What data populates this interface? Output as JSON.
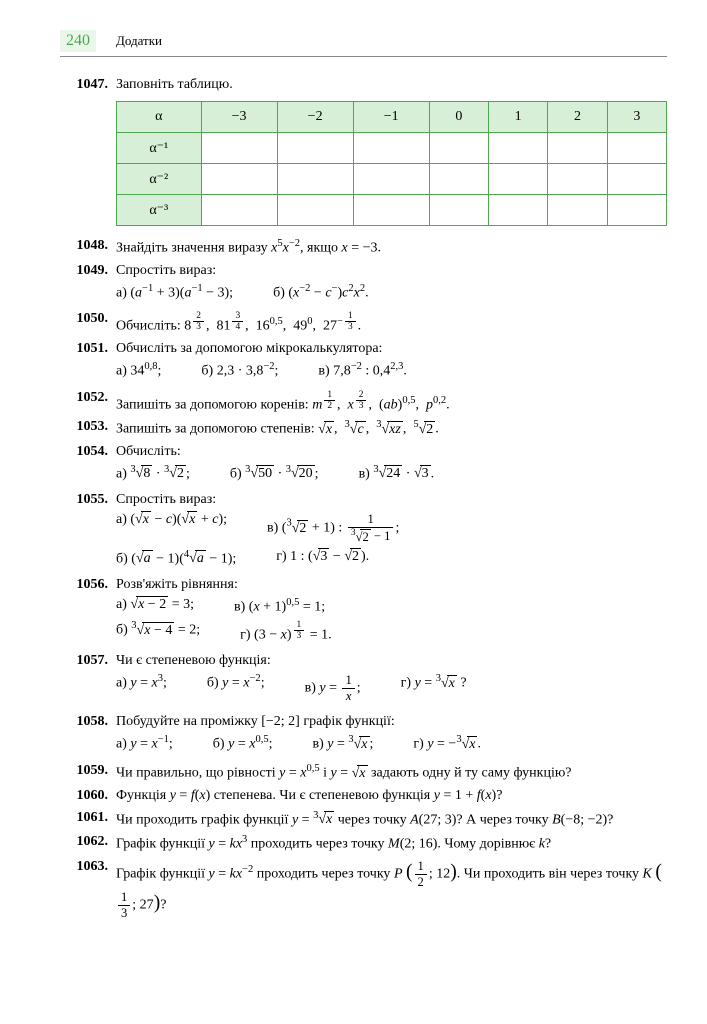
{
  "page_number": "240",
  "header_title": "Додатки",
  "table": {
    "headers": [
      "α",
      "−3",
      "−2",
      "−1",
      "0",
      "1",
      "2",
      "3"
    ],
    "row_labels": [
      "α⁻¹",
      "α⁻²",
      "α⁻³"
    ]
  },
  "problems": {
    "p1047": {
      "num": "1047.",
      "text": "Заповніть таблицю."
    },
    "p1048": {
      "num": "1048.",
      "text": "Знайдіть значення виразу x⁵x⁻², якщо x = −3."
    },
    "p1049": {
      "num": "1049.",
      "text": "Спростіть вираз:",
      "a": "а) (a⁻¹ + 3)(a⁻¹ − 3);",
      "b": "б) (x⁻² − c⁻)c²x²."
    },
    "p1050": {
      "num": "1050.",
      "text": "Обчисліть: 8^{2/3}, 81^{3/4}, 16^{0,5}, 49^0, 27^{−1/3}."
    },
    "p1051": {
      "num": "1051.",
      "text": "Обчисліть за допомогою мікрокалькулятора:",
      "a": "а) 34^{0,8};",
      "b": "б) 2,3 · 3,8^{−2};",
      "v": "в) 7,8^{−2} : 0,4^{2,3}."
    },
    "p1052": {
      "num": "1052.",
      "text": "Запишіть за допомогою коренів: m^{1/2}, x^{2/3}, (ab)^{0,5}, p^{0,2}."
    },
    "p1053": {
      "num": "1053.",
      "text": "Запишіть за допомогою степенів: √x, ³√c, ³√(xz), ⁵√2."
    },
    "p1054": {
      "num": "1054.",
      "text": "Обчисліть:",
      "a": "а) ³√8 · ³√2;",
      "b": "б) ³√50 · ³√20;",
      "v": "в) ³√24 · √3."
    },
    "p1055": {
      "num": "1055.",
      "text": "Спростіть вираз:",
      "a": "а) (√x − c)(√x + c);",
      "v": "в) (³√2 + 1) : 1/(³√2 − 1);",
      "b": "б) (√a − 1)(⁴√a − 1);",
      "g": "г) 1 : (√3 − √2)."
    },
    "p1056": {
      "num": "1056.",
      "text": "Розв'яжіть рівняння:",
      "a": "а) √(x − 2) = 3;",
      "v": "в) (x + 1)^{0,5} = 1;",
      "b": "б) ³√(x − 4) = 2;",
      "g": "г) (3 − x)^{1/3} = 1."
    },
    "p1057": {
      "num": "1057.",
      "text": "Чи є степеневою функція:",
      "a": "а) y = x³;",
      "b": "б) y = x⁻²;",
      "v": "в) y = 1/x;",
      "g": "г) y = ³√x ?"
    },
    "p1058": {
      "num": "1058.",
      "text": "Побудуйте на проміжку [−2; 2] графік функції:",
      "a": "а) y = x⁻¹;",
      "b": "б) y = x^{0,5};",
      "v": "в) y = ³√x;",
      "g": "г) y = −³√x."
    },
    "p1059": {
      "num": "1059.",
      "text": "Чи правильно, що рівності y = x^{0,5} і y = √x задають одну й ту саму функцію?"
    },
    "p1060": {
      "num": "1060.",
      "text": "Функція y = f(x) степенева. Чи є степеневою функція y = 1 + f(x)?"
    },
    "p1061": {
      "num": "1061.",
      "text": "Чи проходить графік функції y = ³√x через точку A(27; 3)? А через точку B(−8; −2)?"
    },
    "p1062": {
      "num": "1062.",
      "text": "Графік функції y = kx³ проходить через точку M(2; 16). Чому дорівнює k?"
    },
    "p1063": {
      "num": "1063.",
      "text": "Графік функції y = kx⁻² проходить через точку P(1/2; 12). Чи проходить він через точку K(1/3; 27)?"
    }
  }
}
